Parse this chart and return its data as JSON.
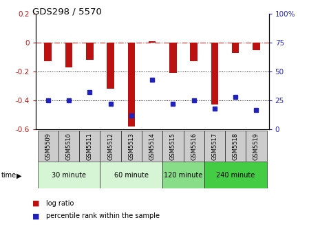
{
  "title": "GDS298 / 5570",
  "samples": [
    "GSM5509",
    "GSM5510",
    "GSM5511",
    "GSM5512",
    "GSM5513",
    "GSM5514",
    "GSM5515",
    "GSM5516",
    "GSM5517",
    "GSM5518",
    "GSM5519"
  ],
  "log_ratios": [
    -0.13,
    -0.17,
    -0.12,
    -0.32,
    -0.58,
    0.01,
    -0.21,
    -0.13,
    -0.43,
    -0.07,
    -0.05
  ],
  "percentile_ranks": [
    25,
    25,
    32,
    22,
    12,
    43,
    22,
    25,
    18,
    28,
    17
  ],
  "group_data": [
    {
      "label": "30 minute",
      "start": 0,
      "end": 3,
      "color": "#d5f5d5"
    },
    {
      "label": "60 minute",
      "start": 3,
      "end": 6,
      "color": "#d5f5d5"
    },
    {
      "label": "120 minute",
      "start": 6,
      "end": 8,
      "color": "#88dd88"
    },
    {
      "label": "240 minute",
      "start": 8,
      "end": 11,
      "color": "#44cc44"
    }
  ],
  "ylim_left": [
    -0.6,
    0.2
  ],
  "ylim_right": [
    0,
    100
  ],
  "left_yticks": [
    -0.6,
    -0.4,
    -0.2,
    0,
    0.2
  ],
  "right_yticks": [
    0,
    25,
    50,
    75,
    100
  ],
  "right_yticklabels": [
    "0",
    "25",
    "50",
    "75",
    "100%"
  ],
  "bar_color": "#bb1111",
  "dot_color": "#2222bb",
  "hline_color": "#cc4444",
  "bar_width": 0.35,
  "dot_size": 4,
  "legend_bar_label": "log ratio",
  "legend_dot_label": "percentile rank within the sample",
  "time_label": "time"
}
